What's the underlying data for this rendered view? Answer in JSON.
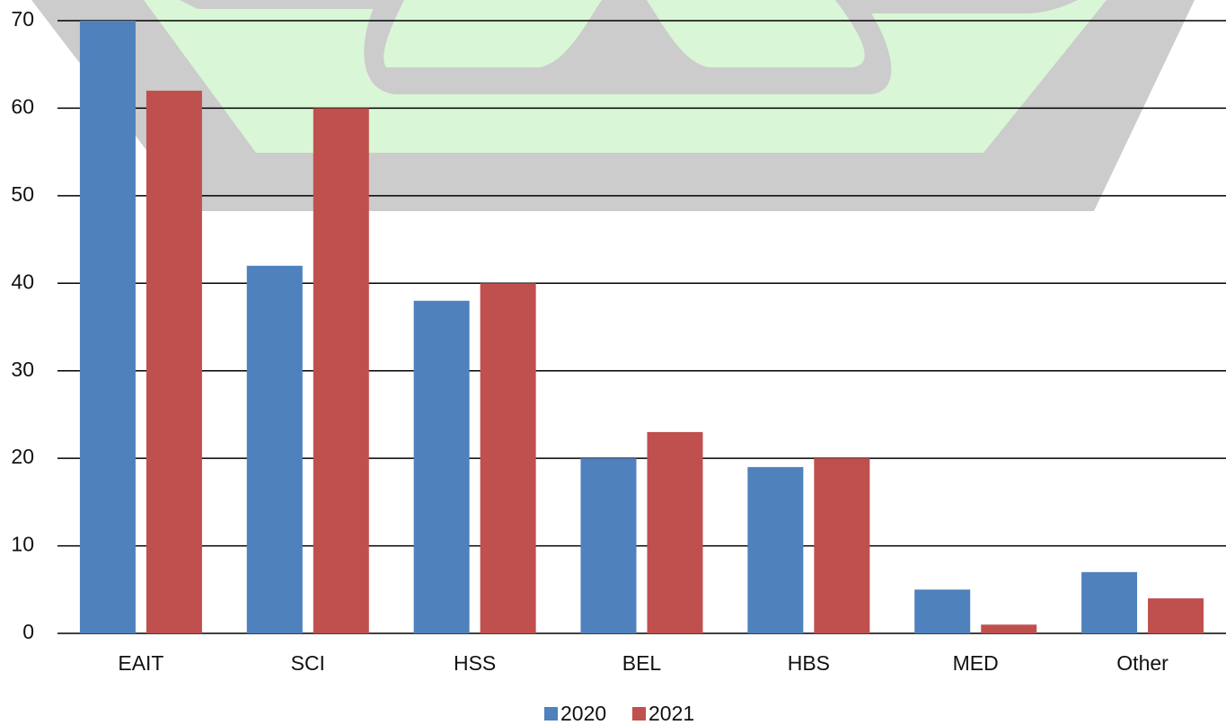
{
  "chart_data": {
    "type": "bar",
    "categories": [
      "EAIT",
      "SCI",
      "HSS",
      "BEL",
      "HBS",
      "MED",
      "Other"
    ],
    "series": [
      {
        "name": "2020",
        "color": "#4f81bd",
        "values": [
          70,
          42,
          38,
          20,
          19,
          5,
          7
        ]
      },
      {
        "name": "2021",
        "color": "#c0504d",
        "values": [
          62,
          60,
          40,
          23,
          20,
          1,
          4
        ]
      }
    ],
    "ylim": [
      0,
      70
    ],
    "yticks": [
      0,
      10,
      20,
      30,
      40,
      50,
      60,
      70
    ],
    "grid": true,
    "legend": "bottom"
  }
}
